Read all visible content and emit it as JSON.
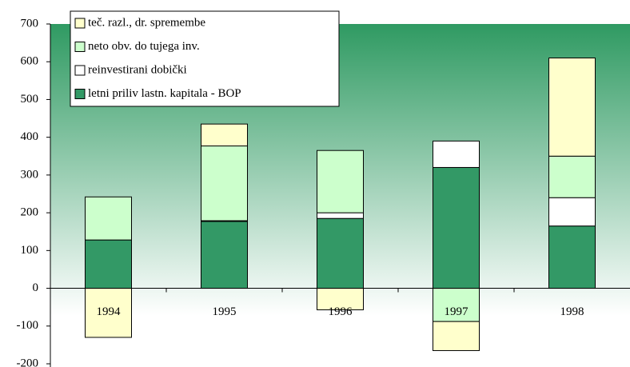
{
  "chart_data": {
    "type": "stacked_bar",
    "categories": [
      "1994",
      "1995",
      "1996",
      "1997",
      "1998"
    ],
    "series": [
      {
        "name": "letni priliv lastn. kapitala - BOP",
        "color": "#339966",
        "values": [
          128,
          177,
          185,
          320,
          165
        ]
      },
      {
        "name": "reinvestirani dobički",
        "color": "#ffffff",
        "values": [
          0,
          2,
          15,
          70,
          75
        ]
      },
      {
        "name": "neto obv. do tujega inv.",
        "color": "#ccffcc",
        "values": [
          114,
          198,
          165,
          -88,
          110
        ]
      },
      {
        "name": "teč. razl., dr. spremembe",
        "color": "#ffffcc",
        "values": [
          -130,
          58,
          -57,
          -77,
          260
        ]
      }
    ],
    "ylim": [
      -200,
      700
    ],
    "yticks": [
      -200,
      -100,
      0,
      100,
      200,
      300,
      400,
      500,
      600,
      700
    ]
  }
}
